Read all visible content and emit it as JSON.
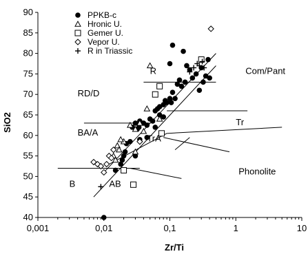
{
  "chart_data": {
    "type": "scatter",
    "xlabel": "Zr/Ti",
    "ylabel": "SiO2",
    "x_scale": "log",
    "xlim": [
      0.001,
      10
    ],
    "ylim": [
      40,
      90
    ],
    "x_ticks": [
      "0,001",
      "0,01",
      "0,1",
      "1",
      "10"
    ],
    "y_ticks": [
      "40",
      "45",
      "50",
      "55",
      "60",
      "65",
      "70",
      "75",
      "80",
      "85",
      "90"
    ],
    "grid": false,
    "legend_position": "top-left",
    "series": [
      {
        "name": "PPKB-c",
        "marker": "filled-circle",
        "points": [
          [
            0.01,
            40.0
          ],
          [
            0.015,
            51.5
          ],
          [
            0.018,
            53.0
          ],
          [
            0.019,
            54.0
          ],
          [
            0.02,
            55.0
          ],
          [
            0.021,
            56.0
          ],
          [
            0.022,
            58.0
          ],
          [
            0.025,
            58.5
          ],
          [
            0.027,
            62.0
          ],
          [
            0.03,
            63.0
          ],
          [
            0.032,
            61.5
          ],
          [
            0.034,
            62.0
          ],
          [
            0.035,
            63.5
          ],
          [
            0.04,
            63.0
          ],
          [
            0.045,
            62.5
          ],
          [
            0.05,
            64.0
          ],
          [
            0.055,
            63.5
          ],
          [
            0.06,
            66.0
          ],
          [
            0.065,
            66.5
          ],
          [
            0.07,
            67.0
          ],
          [
            0.08,
            67.5
          ],
          [
            0.085,
            68.5
          ],
          [
            0.09,
            68.0
          ],
          [
            0.1,
            69.0
          ],
          [
            0.105,
            68.0
          ],
          [
            0.11,
            70.5
          ],
          [
            0.12,
            69.0
          ],
          [
            0.13,
            72.5
          ],
          [
            0.14,
            73.5
          ],
          [
            0.15,
            72.0
          ],
          [
            0.17,
            73.0
          ],
          [
            0.18,
            77.0
          ],
          [
            0.2,
            76.0
          ],
          [
            0.22,
            74.0
          ],
          [
            0.25,
            75.0
          ],
          [
            0.3,
            76.5
          ],
          [
            0.32,
            73.0
          ],
          [
            0.35,
            74.5
          ],
          [
            0.38,
            78.5
          ],
          [
            0.4,
            74.0
          ],
          [
            0.11,
            82.0
          ],
          [
            0.16,
            80.5
          ],
          [
            0.03,
            55.0
          ],
          [
            0.035,
            59.0
          ],
          [
            0.045,
            59.5
          ],
          [
            0.07,
            65.0
          ],
          [
            0.08,
            64.5
          ],
          [
            0.06,
            62.0
          ],
          [
            0.1,
            77.5
          ],
          [
            0.28,
            71.0
          ]
        ]
      },
      {
        "name": "Hronic U.",
        "marker": "open-triangle",
        "points": [
          [
            0.014,
            55.0
          ],
          [
            0.015,
            54.0
          ],
          [
            0.016,
            57.5
          ],
          [
            0.017,
            56.5
          ],
          [
            0.02,
            58.5
          ],
          [
            0.018,
            59.0
          ],
          [
            0.025,
            62.5
          ],
          [
            0.03,
            61.5
          ],
          [
            0.04,
            61.0
          ],
          [
            0.035,
            63.0
          ],
          [
            0.045,
            66.5
          ],
          [
            0.07,
            64.0
          ],
          [
            0.05,
            77.0
          ],
          [
            0.03,
            56.0
          ]
        ]
      },
      {
        "name": "Gemer U.",
        "marker": "open-square",
        "points": [
          [
            0.02,
            51.5
          ],
          [
            0.028,
            48.0
          ],
          [
            0.06,
            70.0
          ],
          [
            0.07,
            72.0
          ],
          [
            0.075,
            60.5
          ],
          [
            0.3,
            78.5
          ]
        ]
      },
      {
        "name": "Vepor U.",
        "marker": "open-diamond",
        "points": [
          [
            0.007,
            53.5
          ],
          [
            0.008,
            53.0
          ],
          [
            0.009,
            52.5
          ],
          [
            0.01,
            51.0
          ],
          [
            0.011,
            53.0
          ],
          [
            0.012,
            55.0
          ],
          [
            0.013,
            54.5
          ],
          [
            0.014,
            56.5
          ],
          [
            0.035,
            58.5
          ],
          [
            0.42,
            86.0
          ]
        ]
      },
      {
        "name": "R in Triassic",
        "marker": "plus",
        "points": [
          [
            0.009,
            47.5
          ],
          [
            0.2,
            75.5
          ],
          [
            0.23,
            76.5
          ],
          [
            0.26,
            77.5
          ],
          [
            0.28,
            77.0
          ],
          [
            0.31,
            78.0
          ],
          [
            0.33,
            76.5
          ]
        ]
      }
    ],
    "field_boundaries": [
      [
        [
          0.007,
          45.0
        ],
        [
          0.5,
          77.0
        ]
      ],
      [
        [
          0.01,
          51.0
        ],
        [
          0.5,
          80.0
        ]
      ],
      [
        [
          0.002,
          52.0
        ],
        [
          0.035,
          52.0
        ]
      ],
      [
        [
          0.025,
          52.0
        ],
        [
          0.15,
          49.5
        ]
      ],
      [
        [
          0.012,
          53.0
        ],
        [
          0.09,
          60.5
        ]
      ],
      [
        [
          0.09,
          60.5
        ],
        [
          5.0,
          62.0
        ]
      ],
      [
        [
          0.08,
          59.5
        ],
        [
          0.8,
          56.0
        ]
      ],
      [
        [
          0.005,
          63.0
        ],
        [
          0.05,
          63.0
        ]
      ],
      [
        [
          0.09,
          66.0
        ],
        [
          1.5,
          66.0
        ]
      ],
      [
        [
          0.04,
          73.0
        ],
        [
          0.5,
          73.0
        ]
      ],
      [
        [
          0.12,
          56.5
        ],
        [
          0.2,
          59.5
        ]
      ]
    ],
    "region_labels": [
      {
        "text": "R",
        "x": 0.05,
        "y": 75.0
      },
      {
        "text": "Com/Pant",
        "x": 1.4,
        "y": 75.0
      },
      {
        "text": "RD/D",
        "x": 0.004,
        "y": 69.5
      },
      {
        "text": "Tr",
        "x": 1.0,
        "y": 62.5
      },
      {
        "text": "BA/A",
        "x": 0.004,
        "y": 60.0
      },
      {
        "text": "TrA",
        "x": 0.045,
        "y": 58.5
      },
      {
        "text": "Phonolite",
        "x": 1.1,
        "y": 50.5
      },
      {
        "text": "B",
        "x": 0.003,
        "y": 47.5
      },
      {
        "text": "AB",
        "x": 0.012,
        "y": 47.5
      }
    ]
  }
}
